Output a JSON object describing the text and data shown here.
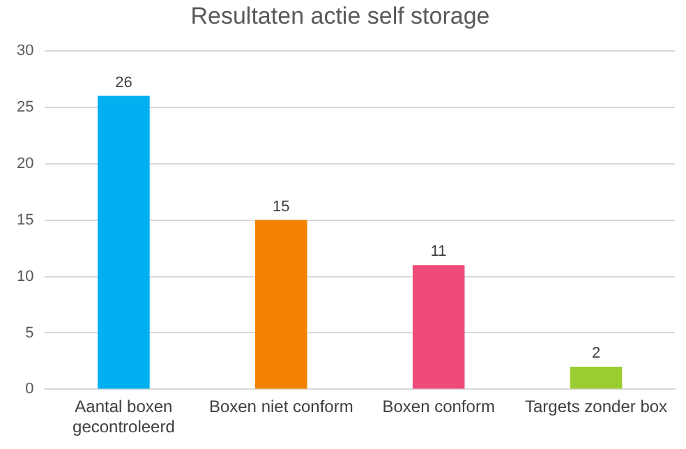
{
  "chart_data": {
    "type": "bar",
    "title": "Resultaten actie self storage",
    "categories": [
      "Aantal boxen gecontroleerd",
      "Boxen niet conform",
      "Boxen conform",
      "Targets zonder box"
    ],
    "values": [
      26,
      15,
      11,
      2
    ],
    "colors": [
      "#00b0f0",
      "#f58200",
      "#ef4a7a",
      "#9acd32"
    ],
    "ylim": [
      0,
      30
    ],
    "yticks": [
      0,
      5,
      10,
      15,
      20,
      25,
      30
    ],
    "grid": "y",
    "data_labels": true,
    "legend": false
  }
}
